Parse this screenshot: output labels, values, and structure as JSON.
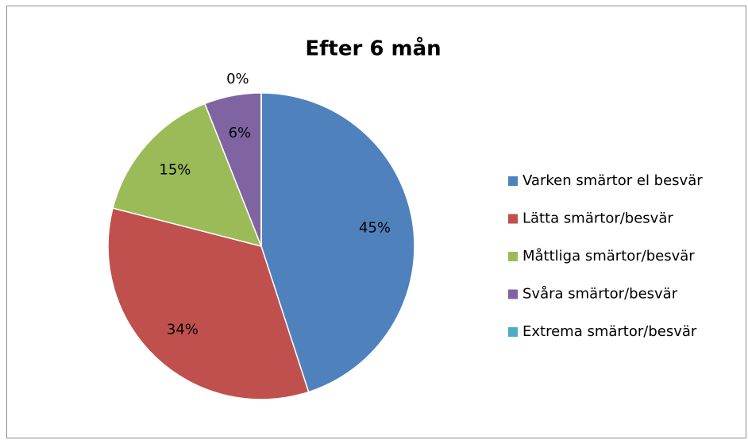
{
  "chart_data": {
    "type": "pie",
    "title": "Efter 6 mån",
    "categories": [
      "Varken smärtor el besvär",
      "Lätta smärtor/besvär",
      "Måttliga smärtor/besvär",
      "Svåra smärtor/besvär",
      "Extrema smärtor/besvär"
    ],
    "values": [
      45,
      34,
      15,
      6,
      0
    ],
    "value_labels": [
      "45%",
      "34%",
      "15%",
      "6%",
      "0%"
    ],
    "colors": [
      "#4f81bd",
      "#c0504d",
      "#9bbb59",
      "#8064a2",
      "#4bacc6"
    ],
    "legend": "right"
  }
}
